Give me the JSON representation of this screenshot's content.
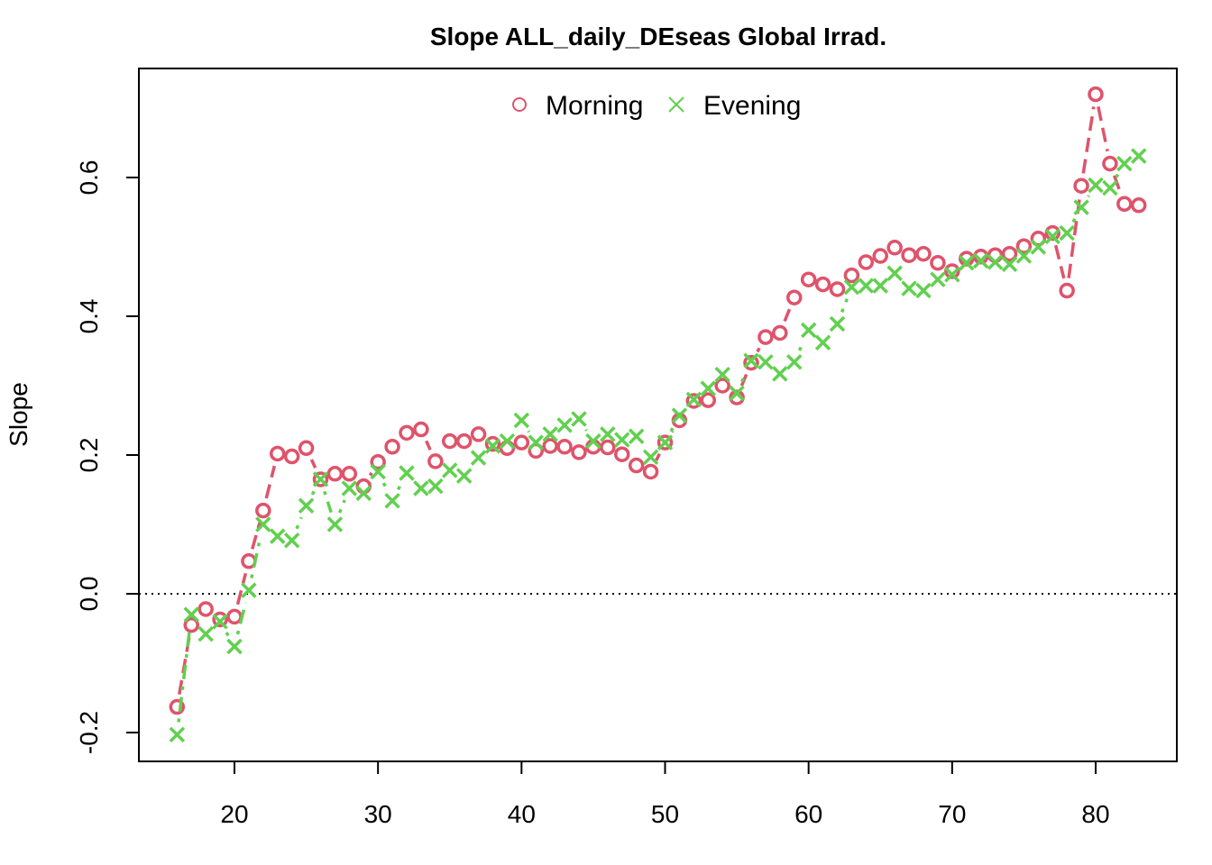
{
  "chart_data": {
    "type": "line",
    "title": "Slope ALL_daily_DEseas Global Irrad.",
    "xlabel": "",
    "ylabel": "Slope",
    "xlim": [
      16,
      83
    ],
    "ylim": [
      -0.2,
      0.72
    ],
    "x_ticks": [
      20,
      30,
      40,
      50,
      60,
      70,
      80
    ],
    "x_tick_labels": [
      "20",
      "30",
      "40",
      "50",
      "60",
      "70",
      "80"
    ],
    "y_ticks": [
      -0.2,
      0.0,
      0.2,
      0.4,
      0.6
    ],
    "y_tick_labels": [
      "-0.2",
      "0.0",
      "0.2",
      "0.4",
      "0.6"
    ],
    "reference_line": {
      "y": 0.0,
      "style": "dotted"
    },
    "grid": false,
    "legend": {
      "placement": "top-center"
    },
    "x": [
      16,
      17,
      18,
      19,
      20,
      21,
      22,
      23,
      24,
      25,
      26,
      27,
      28,
      29,
      30,
      31,
      32,
      33,
      34,
      35,
      36,
      37,
      38,
      39,
      40,
      41,
      42,
      43,
      44,
      45,
      46,
      47,
      48,
      49,
      50,
      51,
      52,
      53,
      54,
      55,
      56,
      57,
      58,
      59,
      60,
      61,
      62,
      63,
      64,
      65,
      66,
      67,
      68,
      69,
      70,
      71,
      72,
      73,
      74,
      75,
      76,
      77,
      78,
      79,
      80,
      81,
      82,
      83
    ],
    "series": [
      {
        "name": "Morning",
        "color": "#DF536B",
        "marker": "circle",
        "line_style": "dashed",
        "values": [
          -0.163,
          -0.045,
          -0.022,
          -0.037,
          -0.033,
          0.047,
          0.12,
          0.202,
          0.198,
          0.21,
          0.165,
          0.173,
          0.173,
          0.155,
          0.19,
          0.212,
          0.232,
          0.237,
          0.191,
          0.22,
          0.22,
          0.23,
          0.216,
          0.21,
          0.218,
          0.206,
          0.213,
          0.212,
          0.204,
          0.212,
          0.211,
          0.201,
          0.185,
          0.176,
          0.218,
          0.25,
          0.278,
          0.279,
          0.3,
          0.283,
          0.333,
          0.37,
          0.376,
          0.427,
          0.453,
          0.446,
          0.439,
          0.459,
          0.478,
          0.487,
          0.499,
          0.488,
          0.49,
          0.477,
          0.465,
          0.483,
          0.486,
          0.488,
          0.49,
          0.501,
          0.512,
          0.52,
          0.437,
          0.588,
          0.72,
          0.62,
          0.562,
          0.56
        ]
      },
      {
        "name": "Evening",
        "color": "#61D04F",
        "marker": "cross",
        "line_style": "dotdash",
        "values": [
          -0.203,
          -0.03,
          -0.058,
          -0.04,
          -0.076,
          0.005,
          0.1,
          0.083,
          0.077,
          0.127,
          0.165,
          0.1,
          0.152,
          0.145,
          0.176,
          0.134,
          0.174,
          0.152,
          0.155,
          0.178,
          0.17,
          0.196,
          0.213,
          0.22,
          0.25,
          0.218,
          0.23,
          0.243,
          0.252,
          0.22,
          0.23,
          0.222,
          0.227,
          0.197,
          0.218,
          0.257,
          0.28,
          0.296,
          0.316,
          0.289,
          0.336,
          0.334,
          0.317,
          0.334,
          0.38,
          0.362,
          0.389,
          0.442,
          0.444,
          0.444,
          0.462,
          0.44,
          0.437,
          0.453,
          0.46,
          0.477,
          0.48,
          0.478,
          0.475,
          0.487,
          0.5,
          0.515,
          0.52,
          0.557,
          0.589,
          0.585,
          0.62,
          0.631
        ]
      }
    ]
  }
}
